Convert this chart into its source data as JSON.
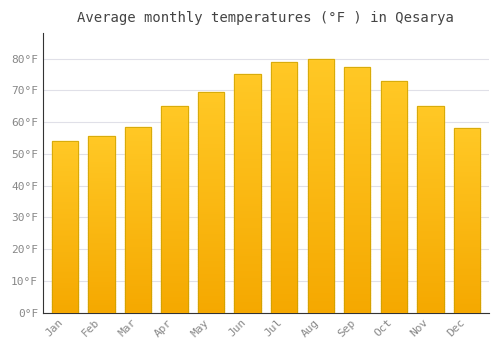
{
  "title": "Average monthly temperatures (°F ) in Qesarya",
  "months": [
    "Jan",
    "Feb",
    "Mar",
    "Apr",
    "May",
    "Jun",
    "Jul",
    "Aug",
    "Sep",
    "Oct",
    "Nov",
    "Dec"
  ],
  "values": [
    54,
    55.5,
    58.5,
    65,
    69.5,
    75,
    79,
    80,
    77.5,
    73,
    65,
    58
  ],
  "bar_color_top": "#FFC825",
  "bar_color_bottom": "#F5A800",
  "bar_edge_color": "#C8A000",
  "background_color": "#FFFFFF",
  "plot_bg_color": "#FFFFFF",
  "grid_color": "#E0E0E8",
  "ylim": [
    0,
    88
  ],
  "yticks": [
    0,
    10,
    20,
    30,
    40,
    50,
    60,
    70,
    80
  ],
  "ytick_labels": [
    "0°F",
    "10°F",
    "20°F",
    "30°F",
    "40°F",
    "50°F",
    "60°F",
    "70°F",
    "80°F"
  ],
  "tick_color": "#888888",
  "title_fontsize": 10,
  "tick_fontsize": 8
}
